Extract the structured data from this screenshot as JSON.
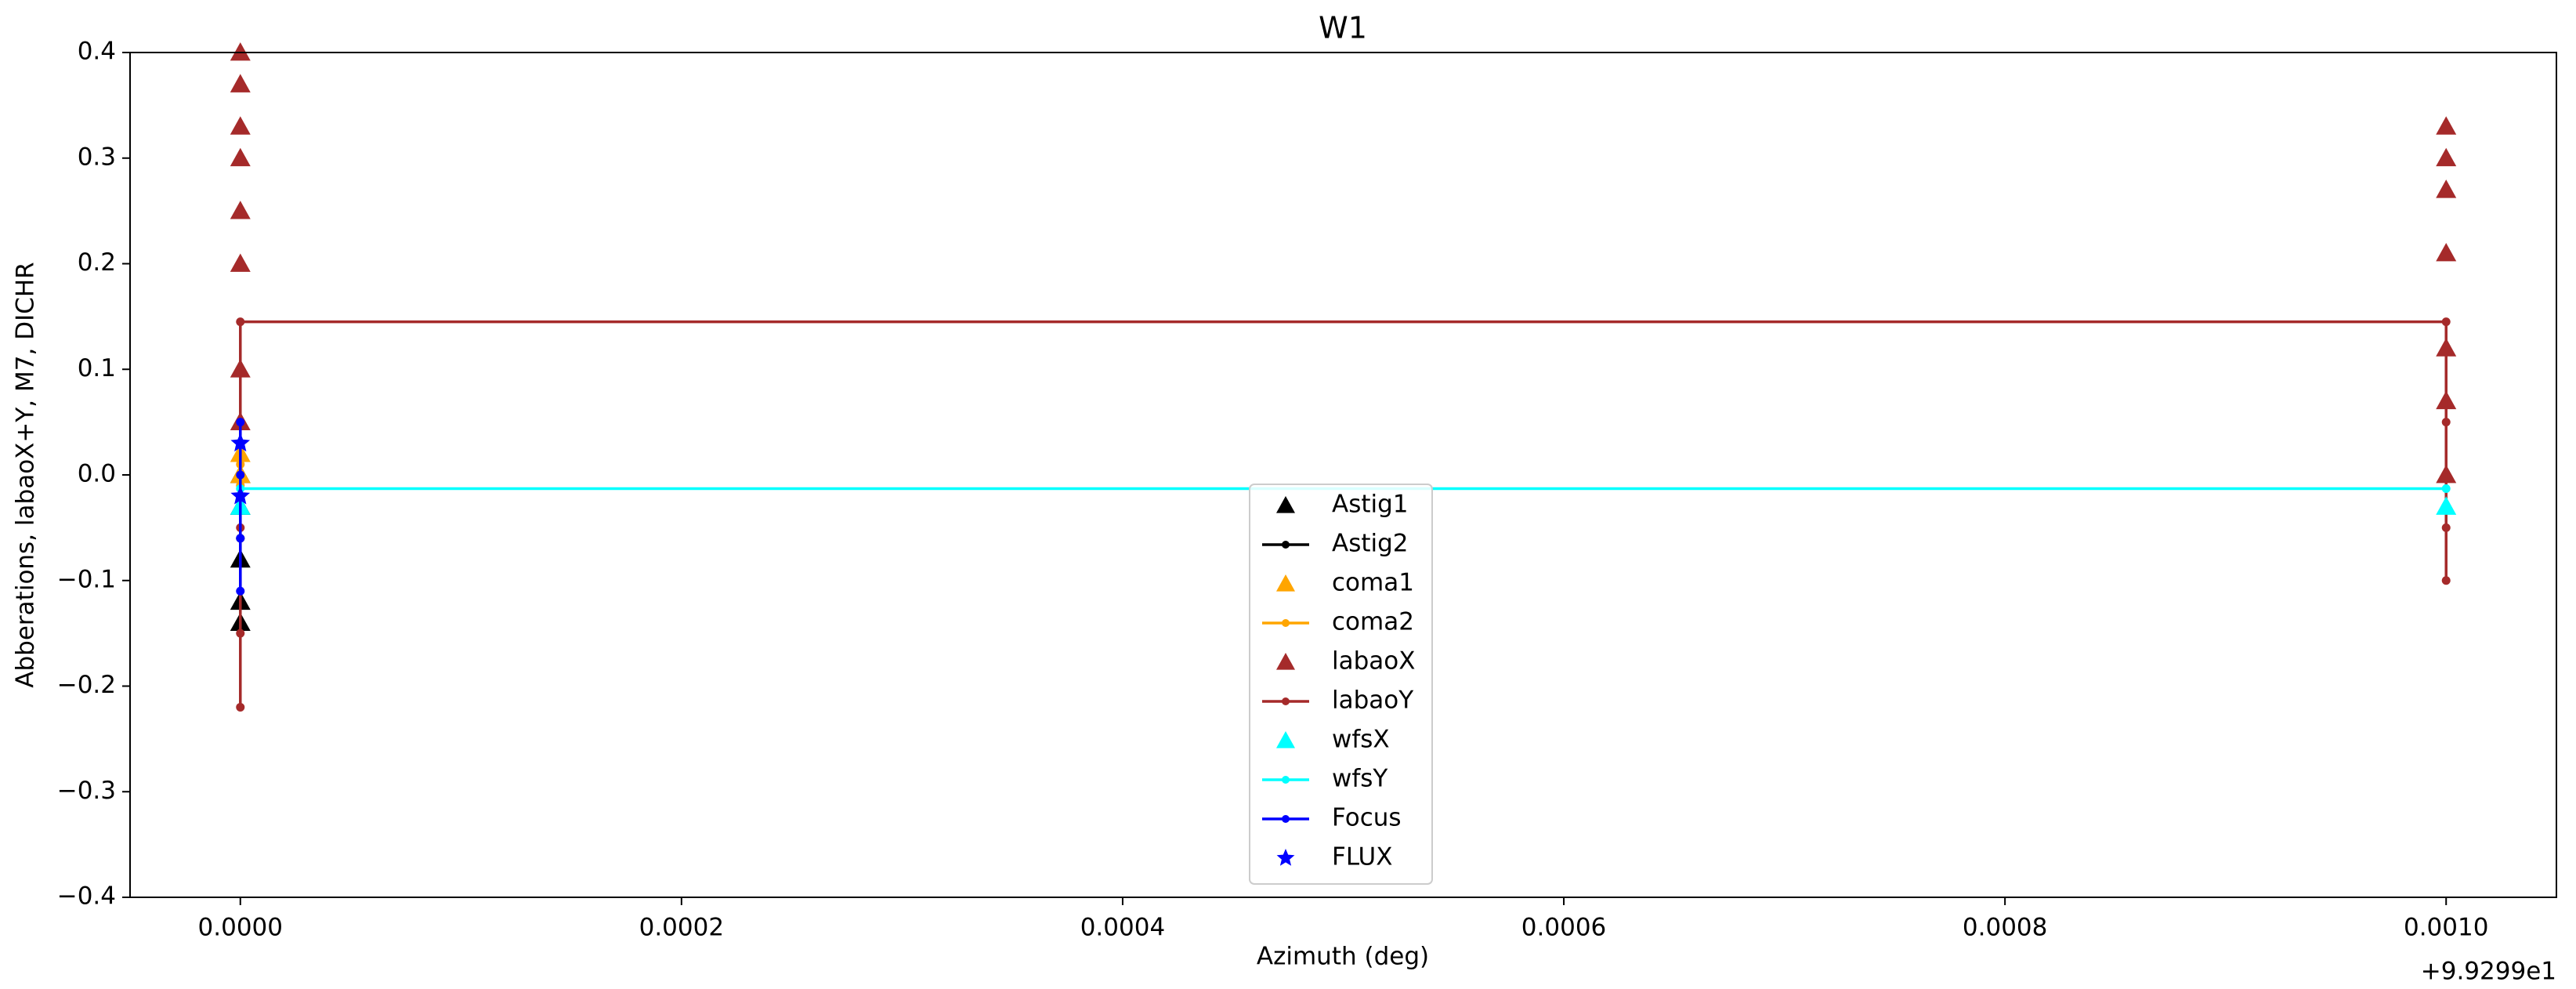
{
  "chart_data": {
    "type": "line",
    "title": "W1",
    "x_label": "Azimuth (deg)",
    "y_label": "Abberations, labaoX+Y, M7, DICHR",
    "x_offset_label": "+9.9299e1",
    "xlim": [
      -5e-05,
      0.00105
    ],
    "ylim": [
      -0.4,
      0.4
    ],
    "xticks": [
      {
        "value": 0,
        "label": "0.0000"
      },
      {
        "value": 0.0002,
        "label": "0.0002"
      },
      {
        "value": 0.0004,
        "label": "0.0004"
      },
      {
        "value": 0.0006,
        "label": "0.0006"
      },
      {
        "value": 0.0008,
        "label": "0.0008"
      },
      {
        "value": 0.001,
        "label": "0.0010"
      }
    ],
    "yticks": [
      {
        "value": -0.4,
        "label": "−0.4"
      },
      {
        "value": -0.3,
        "label": "−0.3"
      },
      {
        "value": -0.2,
        "label": "−0.2"
      },
      {
        "value": -0.1,
        "label": "−0.1"
      },
      {
        "value": 0,
        "label": "0.0"
      },
      0.1,
      0.2,
      0.3,
      0.4
    ],
    "grid": false,
    "legend": "lower center",
    "series": [
      {
        "name": "Astig1",
        "color": "#000000",
        "marker": "triangle",
        "line": false,
        "x": [
          0,
          0,
          0,
          0,
          0
        ],
        "values": [
          -0.14,
          -0.12,
          -0.08,
          -0.03,
          0.0
        ]
      },
      {
        "name": "Astig2",
        "color": "#000000",
        "marker": "dot",
        "line": true,
        "x": [
          0,
          0,
          0
        ],
        "values": [
          -0.12,
          -0.06,
          0.0
        ]
      },
      {
        "name": "coma1",
        "color": "#ffa500",
        "marker": "triangle",
        "line": false,
        "x": [
          0,
          0
        ],
        "values": [
          0.0,
          0.02
        ]
      },
      {
        "name": "coma2",
        "color": "#ffa500",
        "marker": "dot",
        "line": true,
        "x": [
          0,
          0
        ],
        "values": [
          -0.01,
          0.01
        ]
      },
      {
        "name": "labaoX",
        "color": "#a52a2a",
        "marker": "triangle",
        "line": false,
        "x": [
          0,
          0,
          0,
          0,
          0,
          0,
          0,
          0,
          0.001,
          0.001,
          0.001,
          0.001,
          0.001,
          0.001,
          0.001
        ],
        "values": [
          0.05,
          0.1,
          0.2,
          0.25,
          0.3,
          0.33,
          0.37,
          0.4,
          0.0,
          0.07,
          0.12,
          0.21,
          0.27,
          0.3,
          0.33
        ]
      },
      {
        "name": "labaoY",
        "color": "#a52a2a",
        "marker": "dot",
        "line": true,
        "x": [
          0,
          0,
          0,
          0,
          0,
          0.001,
          0.001,
          0.001,
          0.001,
          0.001
        ],
        "values": [
          -0.22,
          -0.15,
          -0.05,
          0.05,
          0.145,
          0.145,
          0.12,
          0.05,
          -0.05,
          -0.1
        ]
      },
      {
        "name": "wfsX",
        "color": "#00ffff",
        "marker": "triangle",
        "line": false,
        "x": [
          0,
          0.001
        ],
        "values": [
          -0.03,
          -0.03
        ]
      },
      {
        "name": "wfsY",
        "color": "#00ffff",
        "marker": "dot",
        "line": true,
        "x": [
          0,
          0.001
        ],
        "values": [
          -0.013,
          -0.013
        ]
      },
      {
        "name": "Focus",
        "color": "#0000ff",
        "marker": "dot",
        "line": true,
        "x": [
          0,
          0,
          0,
          0
        ],
        "values": [
          -0.11,
          -0.06,
          0.0,
          0.05
        ]
      },
      {
        "name": "FLUX",
        "color": "#0000ff",
        "marker": "star",
        "line": false,
        "x": [
          0,
          0
        ],
        "values": [
          -0.02,
          0.03
        ]
      }
    ]
  }
}
